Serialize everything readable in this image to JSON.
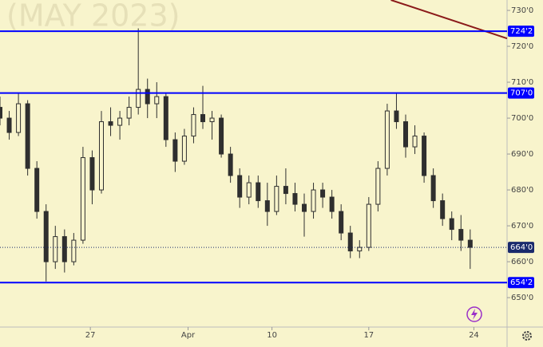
{
  "chart_data": {
    "type": "candlestick",
    "watermark": "(MAY 2023)",
    "x": [
      0,
      1,
      2,
      3,
      4,
      5,
      6,
      7,
      8,
      9,
      10,
      11,
      12,
      13,
      14,
      15,
      16,
      17,
      18,
      19,
      20,
      21,
      22,
      23,
      24,
      25,
      26,
      27,
      28,
      29,
      30,
      31,
      32,
      33,
      34,
      35,
      36,
      37,
      38,
      39,
      40,
      41,
      42,
      43,
      44,
      45,
      46,
      47,
      48,
      49,
      50,
      51
    ],
    "open": [
      703,
      700,
      696,
      704,
      686,
      674,
      660,
      667,
      660,
      666,
      689,
      680,
      699,
      698,
      700,
      703,
      708,
      704,
      706,
      694,
      688,
      695,
      701,
      699,
      700,
      690,
      684,
      678,
      682,
      677,
      674,
      681,
      679,
      676,
      674,
      680,
      678,
      674,
      668,
      663,
      664,
      676,
      686,
      702,
      699,
      692,
      695,
      684,
      677,
      672,
      669,
      666
    ],
    "high": [
      706,
      702,
      707,
      705,
      688,
      676,
      670,
      669,
      668,
      692,
      691,
      702,
      703,
      702,
      706,
      725,
      711,
      710,
      707,
      696,
      697,
      703,
      709,
      702,
      701,
      692,
      686,
      684,
      684,
      682,
      684,
      686,
      682,
      679,
      682,
      682,
      680,
      676,
      670,
      666,
      678,
      688,
      704,
      707,
      701,
      698,
      696,
      686,
      679,
      674,
      673,
      669
    ],
    "low": [
      698,
      694,
      695,
      684,
      672,
      654.5,
      658,
      657,
      659,
      665,
      676,
      679,
      695,
      694,
      698,
      701,
      700,
      700,
      692,
      685,
      687,
      693,
      697,
      694,
      689,
      682,
      675,
      676,
      675,
      670,
      673,
      676,
      674,
      667,
      672,
      675,
      672,
      666,
      661,
      661,
      663,
      674,
      684,
      697,
      689,
      690,
      682,
      675,
      670,
      666,
      663,
      658
    ],
    "close": [
      700,
      696,
      704,
      686,
      674,
      660,
      667,
      660,
      666,
      689,
      680,
      699,
      698,
      700,
      703,
      708,
      704,
      706,
      694,
      688,
      695,
      701,
      699,
      700,
      690,
      684,
      678,
      682,
      677,
      674,
      681,
      679,
      676,
      674,
      680,
      678,
      674,
      668,
      663,
      664,
      676,
      686,
      702,
      699,
      692,
      695,
      684,
      677,
      672,
      669,
      666,
      664
    ],
    "up_color": "#2f2f2f",
    "down_color": "#2f2f2f",
    "xlim": [
      0,
      55
    ],
    "xticks": [
      {
        "value": 9.8,
        "label": "27"
      },
      {
        "value": 20.4,
        "label": "Apr"
      },
      {
        "value": 29.5,
        "label": "10"
      },
      {
        "value": 40,
        "label": "17"
      },
      {
        "value": 51.4,
        "label": "24"
      }
    ],
    "ylim": [
      641.8,
      732.9
    ],
    "yticks": [
      {
        "value": 650,
        "label": "650'0"
      },
      {
        "value": 660,
        "label": "660'0"
      },
      {
        "value": 670,
        "label": "670'0"
      },
      {
        "value": 680,
        "label": "680'0"
      },
      {
        "value": 690,
        "label": "690'0"
      },
      {
        "value": 700,
        "label": "700'0"
      },
      {
        "value": 710,
        "label": "710'0"
      },
      {
        "value": 720,
        "label": "720'0"
      },
      {
        "value": 730,
        "label": "730'0"
      }
    ],
    "levels": [
      {
        "value": 724.2,
        "label": "724'2"
      },
      {
        "value": 707.0,
        "label": "707'0"
      },
      {
        "value": 654.2,
        "label": "654'2"
      }
    ],
    "level_color": "#0000ff",
    "last_price": {
      "value": 664.0,
      "label": "664'0",
      "color": "#1a2a6c"
    },
    "trendline": {
      "x": [
        42.4,
        55
      ],
      "values": [
        732.9,
        722.2
      ],
      "color": "#8b1a1a"
    }
  }
}
